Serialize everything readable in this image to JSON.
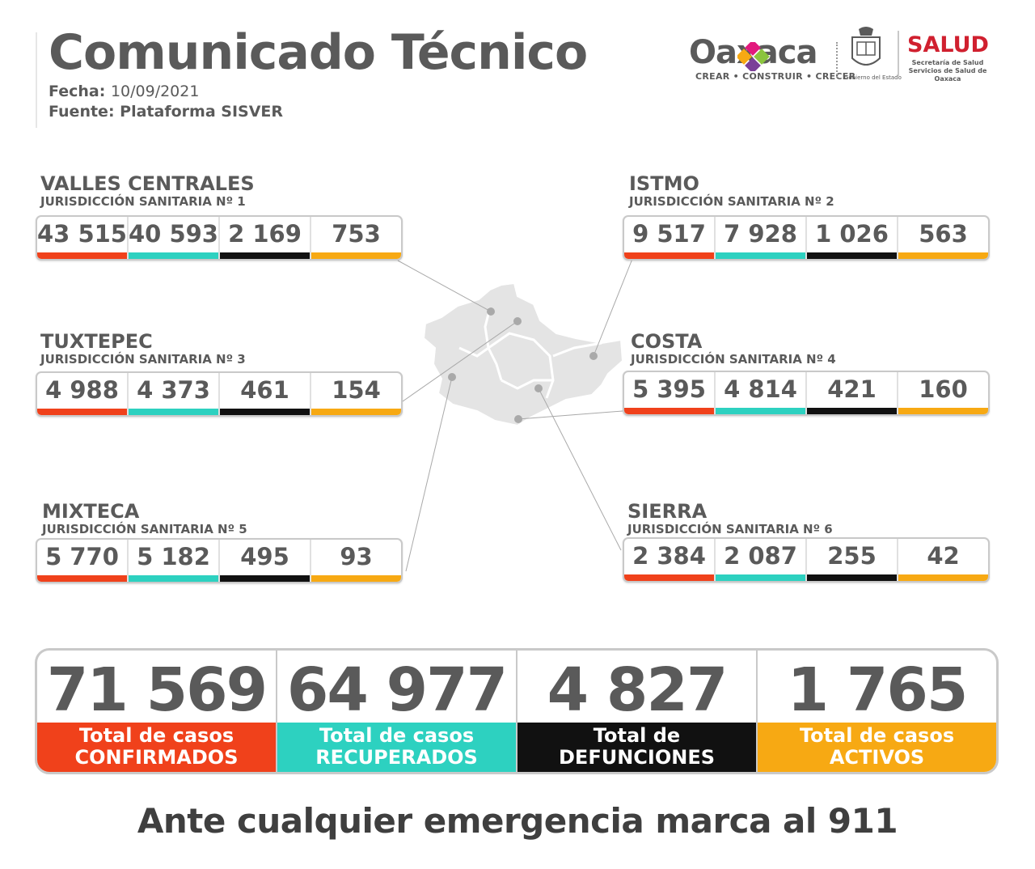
{
  "header": {
    "title": "Comunicado Técnico",
    "fecha_label": "Fecha:",
    "fecha_value": "10/09/2021",
    "fuente_label": "Fuente:",
    "fuente_value": "Plataforma SISVER"
  },
  "logos": {
    "oaxaca_word": "Oaxaca",
    "oaxaca_tagline": "CREAR • CONSTRUIR • CRECER",
    "gobierno_text": "Gobierno del Estado",
    "salud_word": "SALUD",
    "salud_sub_1": "Secretaría de Salud",
    "salud_sub_2": "Servicios de Salud de Oaxaca"
  },
  "colors": {
    "confirmed": "#f0411b",
    "recovered": "#2dd1c0",
    "deaths": "#111111",
    "active": "#f7a913",
    "text": "#5a5a5a",
    "salud_red": "#d0202f"
  },
  "regions": [
    {
      "name": "VALLES CENTRALES",
      "jurisdiction": "JURISDICCIÓN SANITARIA Nº 1",
      "values": [
        "43 515",
        "40 593",
        "2 169",
        "753"
      ]
    },
    {
      "name": "ISTMO",
      "jurisdiction": "JURISDICCIÓN SANITARIA Nº 2",
      "values": [
        "9 517",
        "7 928",
        "1 026",
        "563"
      ]
    },
    {
      "name": "TUXTEPEC",
      "jurisdiction": "JURISDICCIÓN SANITARIA Nº 3",
      "values": [
        "4 988",
        "4 373",
        "461",
        "154"
      ]
    },
    {
      "name": "COSTA",
      "jurisdiction": "JURISDICCIÓN SANITARIA Nº 4",
      "values": [
        "5 395",
        "4 814",
        "421",
        "160"
      ]
    },
    {
      "name": "MIXTECA",
      "jurisdiction": "JURISDICCIÓN SANITARIA Nº 5",
      "values": [
        "5 770",
        "5 182",
        "495",
        "93"
      ]
    },
    {
      "name": "SIERRA",
      "jurisdiction": "JURISDICCIÓN SANITARIA Nº 6",
      "values": [
        "2 384",
        "2 087",
        "255",
        "42"
      ]
    }
  ],
  "totals": [
    {
      "value": "71 569",
      "label_1": "Total de casos",
      "label_2": "CONFIRMADOS"
    },
    {
      "value": "64 977",
      "label_1": "Total de casos",
      "label_2": "RECUPERADOS"
    },
    {
      "value": "4 827",
      "label_1": "Total de",
      "label_2": "DEFUNCIONES"
    },
    {
      "value": "1 765",
      "label_1": "Total de casos",
      "label_2": "ACTIVOS"
    }
  ],
  "footer": "Ante cualquier emergencia marca al 911"
}
